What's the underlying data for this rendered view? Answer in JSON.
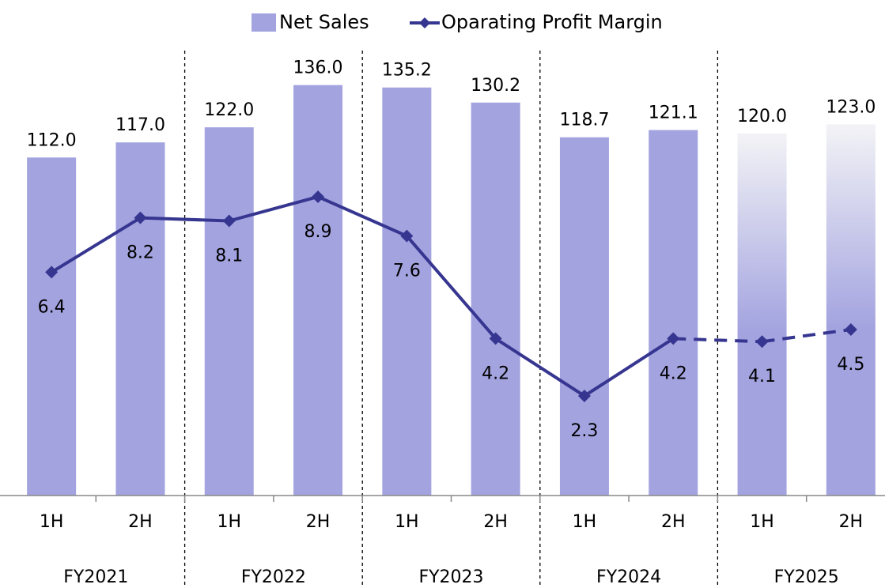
{
  "chart_data": {
    "type": "bar_line",
    "groups": [
      {
        "name": "FY2021",
        "categories": [
          "1H",
          "2H"
        ]
      },
      {
        "name": "FY2022",
        "categories": [
          "1H",
          "2H"
        ]
      },
      {
        "name": "FY2023",
        "categories": [
          "1H",
          "2H"
        ]
      },
      {
        "name": "FY2024",
        "categories": [
          "1H",
          "2H"
        ]
      },
      {
        "name": "FY2025",
        "categories": [
          "1H",
          "2H"
        ]
      }
    ],
    "estimated": [
      false,
      false,
      false,
      false,
      false,
      false,
      false,
      false,
      true,
      true
    ],
    "series": [
      {
        "name": "Net Sales",
        "type": "bar",
        "color": "#a3a3e0",
        "values": [
          112.0,
          117.0,
          122.0,
          136.0,
          135.2,
          130.2,
          118.7,
          121.1,
          120.0,
          123.0
        ],
        "value_labels": [
          "112.0",
          "117.0",
          "122.0",
          "136.0",
          "135.2",
          "130.2",
          "118.7",
          "121.1",
          "120.0",
          "123.0"
        ]
      },
      {
        "name": "Oparating Profit Margin",
        "type": "line",
        "axis": "y2",
        "color": "#363691",
        "values": [
          6.4,
          8.2,
          8.1,
          8.9,
          7.6,
          4.2,
          2.3,
          4.2,
          4.1,
          4.5
        ]
      }
    ],
    "ylim": [
      0,
      160
    ],
    "y2lim": [
      -1,
      15
    ]
  }
}
